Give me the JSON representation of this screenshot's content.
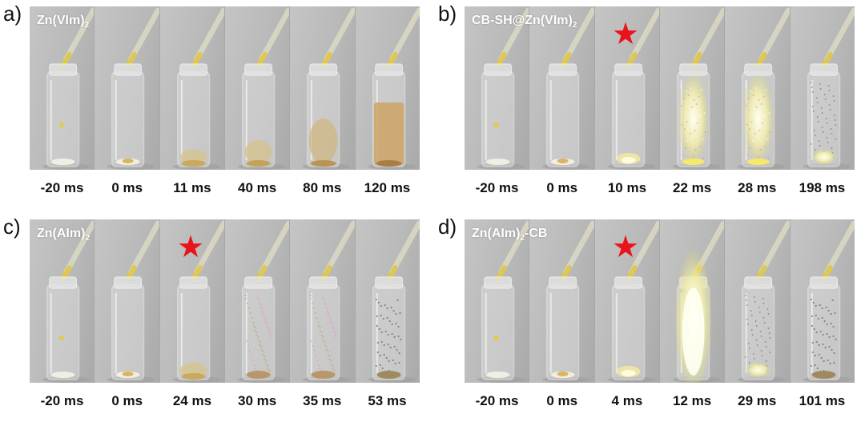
{
  "panels": [
    {
      "id": "a",
      "letter": "a)",
      "sample_main": "Zn(VIm)",
      "sample_sub": "2",
      "sample_tail": "",
      "times": [
        "-20 ms",
        "0 ms",
        "11 ms",
        "40 ms",
        "80 ms",
        "120 ms"
      ],
      "star_frame": null,
      "frames": [
        "drop",
        "pile",
        "smallplume",
        "plume",
        "cloud",
        "dense"
      ]
    },
    {
      "id": "b",
      "letter": "b)",
      "sample_main": "CB-SH@Zn(VIm)",
      "sample_sub": "2",
      "sample_tail": "",
      "times": [
        "-20 ms",
        "0 ms",
        "10 ms",
        "22 ms",
        "28 ms",
        "198 ms"
      ],
      "star_frame": 2,
      "frames": [
        "drop",
        "pile",
        "ignite",
        "flame",
        "flame2",
        "glowbottom"
      ]
    },
    {
      "id": "c",
      "letter": "c)",
      "sample_main": "Zn(AIm)",
      "sample_sub": "2",
      "sample_tail": "",
      "times": [
        "-20 ms",
        "0 ms",
        "24 ms",
        "30 ms",
        "35 ms",
        "53 ms"
      ],
      "star_frame": 2,
      "frames": [
        "drop",
        "pile",
        "smallplume",
        "sparks",
        "sparks",
        "debris"
      ]
    },
    {
      "id": "d",
      "letter": "d)",
      "sample_main": "Zn(AIm)",
      "sample_sub": "2",
      "sample_tail": "-CB",
      "times": [
        "-20 ms",
        "0 ms",
        "4 ms",
        "12 ms",
        "29 ms",
        "101 ms"
      ],
      "star_frame": 2,
      "frames": [
        "drop",
        "pile",
        "ignite",
        "bigflame",
        "glowbottom",
        "debris"
      ]
    }
  ],
  "colors": {
    "star": "#e8141a",
    "label": "#ffffff",
    "background": "#b9bab9"
  }
}
